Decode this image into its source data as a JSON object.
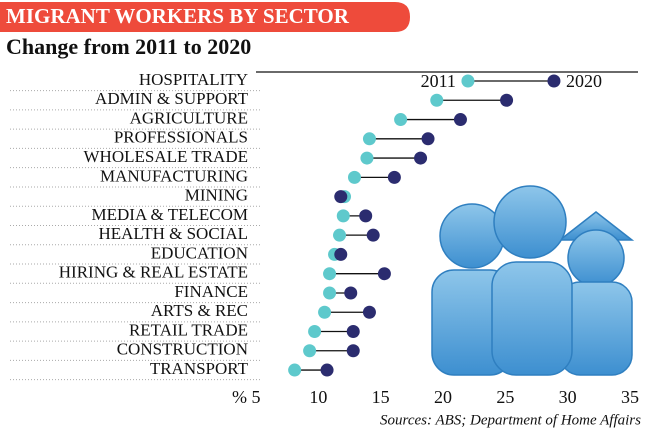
{
  "chart_data": {
    "type": "dumbbell",
    "title": "MIGRANT WORKERS BY SECTOR",
    "subtitle": "Change from 2011 to 2020",
    "xlabel": "%",
    "source": "Sources: ABS; Department of Home Affairs",
    "categories": [
      "HOSPITALITY",
      "ADMIN & SUPPORT",
      "AGRICULTURE",
      "PROFESSIONALS",
      "WHOLESALE TRADE",
      "MANUFACTURING",
      "MINING",
      "MEDIA & TELECOM",
      "HEALTH & SOCIAL",
      "EDUCATION",
      "HIRING & REAL ESTATE",
      "FINANCE",
      "ARTS & REC",
      "RETAIL TRADE",
      "CONSTRUCTION",
      "TRANSPORT"
    ],
    "series": [
      {
        "name": "2011",
        "color": "#5ec9cc",
        "values": [
          22.0,
          19.5,
          16.6,
          14.1,
          13.9,
          12.9,
          12.1,
          12.0,
          11.7,
          11.3,
          10.9,
          10.9,
          10.5,
          9.7,
          9.3,
          8.1
        ]
      },
      {
        "name": "2020",
        "color": "#2b2c6f",
        "values": [
          28.9,
          25.1,
          21.4,
          18.8,
          18.2,
          16.1,
          11.8,
          13.8,
          14.4,
          11.8,
          15.3,
          12.6,
          14.1,
          12.8,
          12.8,
          10.7
        ]
      }
    ],
    "xlim": [
      5,
      35
    ],
    "xticks": [
      5,
      10,
      15,
      20,
      25,
      30,
      35
    ]
  }
}
